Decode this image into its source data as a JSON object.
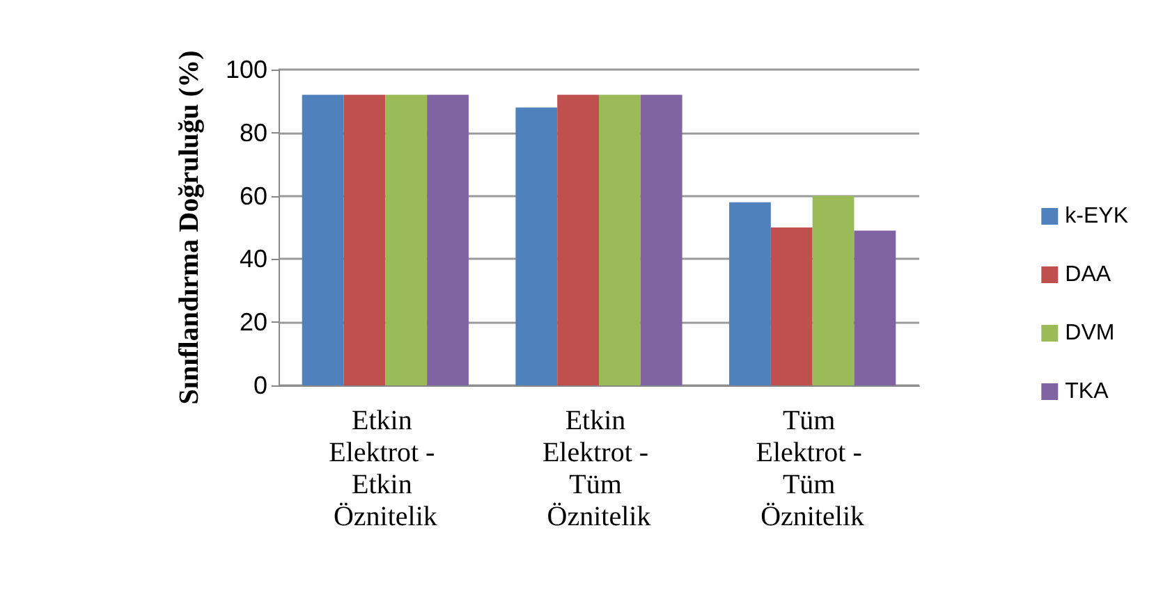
{
  "chart_data": {
    "type": "bar",
    "ylabel": "Sınıflandırma Doğruluğu (%)",
    "categories": [
      "Etkin Elektrot - Etkin Öznitelik",
      "Etkin Elektrot - Tüm Öznitelik",
      "Tüm Elektrot - Tüm Öznitelik"
    ],
    "series": [
      {
        "name": "k-EYK",
        "color": "#4f81bd",
        "values": [
          92,
          88,
          58
        ]
      },
      {
        "name": "DAA",
        "color": "#c0504d",
        "values": [
          92,
          92,
          50
        ]
      },
      {
        "name": "DVM",
        "color": "#9bbb59",
        "values": [
          92,
          92,
          60
        ]
      },
      {
        "name": "TKA",
        "color": "#8064a2",
        "values": [
          92,
          92,
          49
        ]
      }
    ],
    "ylim": [
      0,
      100
    ],
    "yticks": [
      0,
      20,
      40,
      60,
      80,
      100
    ],
    "grid": "y",
    "legend": "right"
  }
}
